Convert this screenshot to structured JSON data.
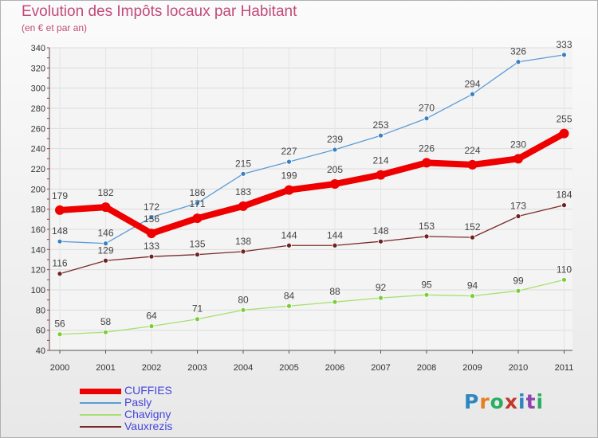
{
  "title": "Evolution des Impôts locaux par Habitant",
  "subtitle": "(en € et par an)",
  "logo": {
    "text": "Proxiti",
    "letter_colors": [
      "#2e86c1",
      "#e67e22",
      "#27ae60",
      "#c0392b",
      "#2e86c1",
      "#8e44ad",
      "#27ae60"
    ]
  },
  "chart_data": {
    "type": "line",
    "title": "Evolution des Impôts locaux par Habitant",
    "subtitle": "(en € et par an)",
    "xlabel": "",
    "ylabel": "",
    "x": [
      "2000",
      "2001",
      "2002",
      "2003",
      "2004",
      "2005",
      "2006",
      "2007",
      "2008",
      "2009",
      "2010",
      "2011"
    ],
    "ylim": [
      40,
      340
    ],
    "yticks": [
      40,
      60,
      80,
      100,
      120,
      140,
      160,
      180,
      200,
      220,
      240,
      260,
      280,
      300,
      320,
      340
    ],
    "grid": true,
    "legend_position": "bottom-left",
    "series": [
      {
        "name": "Pasly",
        "color": "#5b9bd5",
        "marker": "#3a7fc0",
        "width": 1.3,
        "radius": 3,
        "label_pos": "above",
        "values": [
          148,
          146,
          172,
          186,
          215,
          227,
          239,
          253,
          270,
          294,
          326,
          333
        ]
      },
      {
        "name": "Chavigny",
        "color": "#a8e070",
        "marker": "#7ccd3a",
        "width": 1.3,
        "radius": 3,
        "label_pos": "above",
        "values": [
          56,
          58,
          64,
          71,
          80,
          84,
          88,
          92,
          95,
          94,
          99,
          110
        ]
      },
      {
        "name": "Vauxrezis",
        "color": "#7a2c2c",
        "marker": "#6e2222",
        "width": 1.3,
        "radius": 3,
        "label_pos": "above",
        "values": [
          116,
          129,
          133,
          135,
          138,
          144,
          144,
          148,
          153,
          152,
          173,
          184
        ]
      },
      {
        "name": "CUFFIES",
        "color": "#ee0000",
        "marker": "#ee0000",
        "width": 8,
        "radius": 6,
        "label_pos": "above_far",
        "values": [
          179,
          182,
          156,
          171,
          183,
          199,
          205,
          214,
          226,
          224,
          230,
          255
        ]
      }
    ],
    "legend_order": [
      "CUFFIES",
      "Pasly",
      "Chavigny",
      "Vauxrezis"
    ]
  }
}
